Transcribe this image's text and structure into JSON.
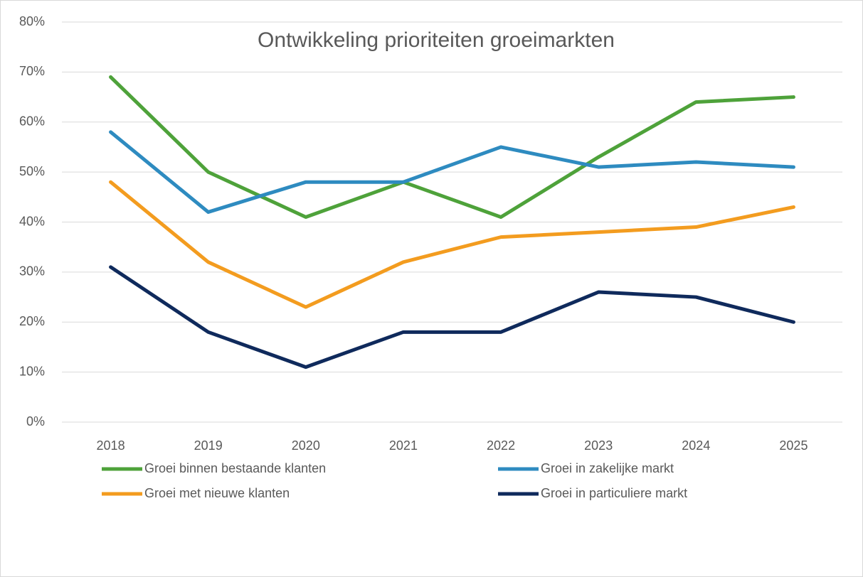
{
  "chart_data": {
    "type": "line",
    "title": "Ontwikkeling prioriteiten groeimarkten",
    "categories": [
      "2018",
      "2019",
      "2020",
      "2021",
      "2022",
      "2023",
      "2024",
      "2025"
    ],
    "series": [
      {
        "name": "Groei binnen bestaande klanten",
        "color": "#4ea23a",
        "values": [
          69,
          50,
          41,
          48,
          41,
          53,
          64,
          65
        ]
      },
      {
        "name": "Groei in zakelijke markt",
        "color": "#2e8bc0",
        "values": [
          58,
          42,
          48,
          48,
          55,
          51,
          52,
          51
        ]
      },
      {
        "name": "Groei met nieuwe klanten",
        "color": "#f39c1f",
        "values": [
          48,
          32,
          23,
          32,
          37,
          38,
          39,
          43
        ]
      },
      {
        "name": "Groei in particuliere markt",
        "color": "#0f2a5c",
        "values": [
          31,
          18,
          11,
          18,
          18,
          26,
          25,
          20
        ]
      }
    ],
    "ylim": [
      0,
      80
    ],
    "yticks": [
      {
        "value": 0,
        "label": "0%"
      },
      {
        "value": 10,
        "label": "10%"
      },
      {
        "value": 20,
        "label": "20%"
      },
      {
        "value": 30,
        "label": "30%"
      },
      {
        "value": 40,
        "label": "40%"
      },
      {
        "value": 50,
        "label": "50%"
      },
      {
        "value": 60,
        "label": "60%"
      },
      {
        "value": 70,
        "label": "70%"
      },
      {
        "value": 80,
        "label": "80%"
      }
    ],
    "grid": true,
    "legend": "bottom"
  }
}
